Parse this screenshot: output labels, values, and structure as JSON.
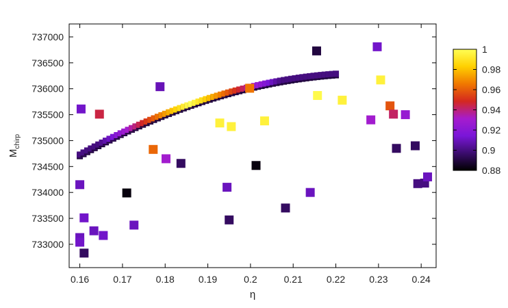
{
  "chart_data": {
    "type": "scatter",
    "title": "",
    "xlabel": "η",
    "ylabel": {
      "main": "M",
      "sub": "chirp"
    },
    "xlim": [
      0.1575,
      0.2435
    ],
    "ylim": [
      732550,
      737250
    ],
    "xticks": [
      "0.16",
      "0.17",
      "0.18",
      "0.19",
      "0.2",
      "0.21",
      "0.22",
      "0.23",
      "0.24"
    ],
    "yticks": [
      "733000",
      "733500",
      "734000",
      "734500",
      "735000",
      "735500",
      "736000",
      "736500",
      "737000"
    ],
    "marker": "square",
    "grid": false,
    "colorbar": {
      "range": [
        0.88,
        1.0
      ],
      "ticks": [
        "0.88",
        "0.9",
        "0.92",
        "0.94",
        "0.96",
        "0.98",
        "1"
      ],
      "colormap": [
        "#000000",
        "#3b0c6e",
        "#7a16d8",
        "#a61ccd",
        "#d4281f",
        "#f07800",
        "#ffd000",
        "#ffff55"
      ]
    },
    "points": [
      {
        "x": 0.1603,
        "y": 735610,
        "v": 0.912
      },
      {
        "x": 0.1646,
        "y": 735510,
        "v": 0.945
      },
      {
        "x": 0.1788,
        "y": 736040,
        "v": 0.909
      },
      {
        "x": 0.1772,
        "y": 734830,
        "v": 0.962
      },
      {
        "x": 0.1802,
        "y": 734650,
        "v": 0.93
      },
      {
        "x": 0.1837,
        "y": 734560,
        "v": 0.895
      },
      {
        "x": 0.171,
        "y": 733990,
        "v": 0.882
      },
      {
        "x": 0.16,
        "y": 734150,
        "v": 0.91
      },
      {
        "x": 0.161,
        "y": 733510,
        "v": 0.912
      },
      {
        "x": 0.1633,
        "y": 733260,
        "v": 0.91
      },
      {
        "x": 0.1655,
        "y": 733170,
        "v": 0.912
      },
      {
        "x": 0.16,
        "y": 733130,
        "v": 0.91
      },
      {
        "x": 0.16,
        "y": 733040,
        "v": 0.912
      },
      {
        "x": 0.161,
        "y": 732830,
        "v": 0.895
      },
      {
        "x": 0.1727,
        "y": 733370,
        "v": 0.91
      },
      {
        "x": 0.1945,
        "y": 734100,
        "v": 0.91
      },
      {
        "x": 0.195,
        "y": 733470,
        "v": 0.895
      },
      {
        "x": 0.1928,
        "y": 735340,
        "v": 0.995
      },
      {
        "x": 0.1955,
        "y": 735270,
        "v": 0.995
      },
      {
        "x": 0.1998,
        "y": 736010,
        "v": 0.965
      },
      {
        "x": 0.2033,
        "y": 735380,
        "v": 0.995
      },
      {
        "x": 0.2013,
        "y": 734520,
        "v": 0.882
      },
      {
        "x": 0.2082,
        "y": 733700,
        "v": 0.895
      },
      {
        "x": 0.214,
        "y": 734000,
        "v": 0.91
      },
      {
        "x": 0.2157,
        "y": 735870,
        "v": 0.998
      },
      {
        "x": 0.2215,
        "y": 735780,
        "v": 0.995
      },
      {
        "x": 0.2155,
        "y": 736730,
        "v": 0.89
      },
      {
        "x": 0.2297,
        "y": 736810,
        "v": 0.912
      },
      {
        "x": 0.2305,
        "y": 736170,
        "v": 0.995
      },
      {
        "x": 0.2282,
        "y": 735400,
        "v": 0.93
      },
      {
        "x": 0.2327,
        "y": 735670,
        "v": 0.958
      },
      {
        "x": 0.2335,
        "y": 735510,
        "v": 0.942
      },
      {
        "x": 0.2363,
        "y": 735500,
        "v": 0.925
      },
      {
        "x": 0.2342,
        "y": 734850,
        "v": 0.895
      },
      {
        "x": 0.2386,
        "y": 734900,
        "v": 0.895
      },
      {
        "x": 0.2392,
        "y": 734170,
        "v": 0.9
      },
      {
        "x": 0.2408,
        "y": 734180,
        "v": 0.9
      },
      {
        "x": 0.2415,
        "y": 734300,
        "v": 0.91
      }
    ],
    "ridge": {
      "x_from": 0.16,
      "x_to": 0.22,
      "count": 70,
      "y_at_x_from": 734730,
      "y_at_x_to": 736290,
      "curvature": 300,
      "lower_offset": 30,
      "value_peak_x": 0.186,
      "value_peak": 1.0,
      "value_edge": 0.9
    }
  }
}
